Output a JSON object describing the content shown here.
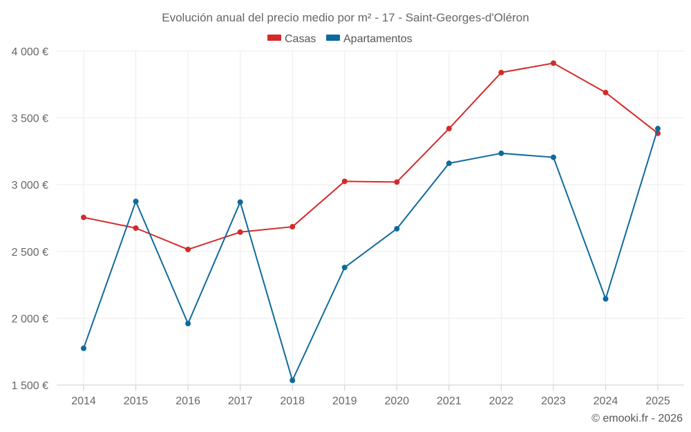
{
  "chart_data": {
    "type": "line",
    "title": "Evolución anual del precio medio por m² - 17 - Saint-Georges-d'Oléron",
    "categories": [
      "2014",
      "2015",
      "2016",
      "2017",
      "2018",
      "2019",
      "2020",
      "2021",
      "2022",
      "2023",
      "2024",
      "2025"
    ],
    "series": [
      {
        "name": "Casas",
        "color": "#d42a2a",
        "values": [
          2755,
          2675,
          2515,
          2645,
          2685,
          3025,
          3020,
          3420,
          3840,
          3910,
          3690,
          3385
        ]
      },
      {
        "name": "Apartamentos",
        "color": "#0f6a9c",
        "values": [
          1775,
          2875,
          1960,
          2870,
          1535,
          2380,
          2670,
          3160,
          3235,
          3205,
          2145,
          3420
        ]
      }
    ],
    "ylim": [
      1500,
      4000
    ],
    "yticks": [
      1500,
      2000,
      2500,
      3000,
      3500,
      4000
    ],
    "ytick_labels": [
      "1 500 €",
      "2 000 €",
      "2 500 €",
      "3 000 €",
      "3 500 €",
      "4 000 €"
    ],
    "grid": true,
    "legend_position": "top-center",
    "xlabel": "",
    "ylabel": ""
  },
  "credit": "© emooki.fr - 2026"
}
